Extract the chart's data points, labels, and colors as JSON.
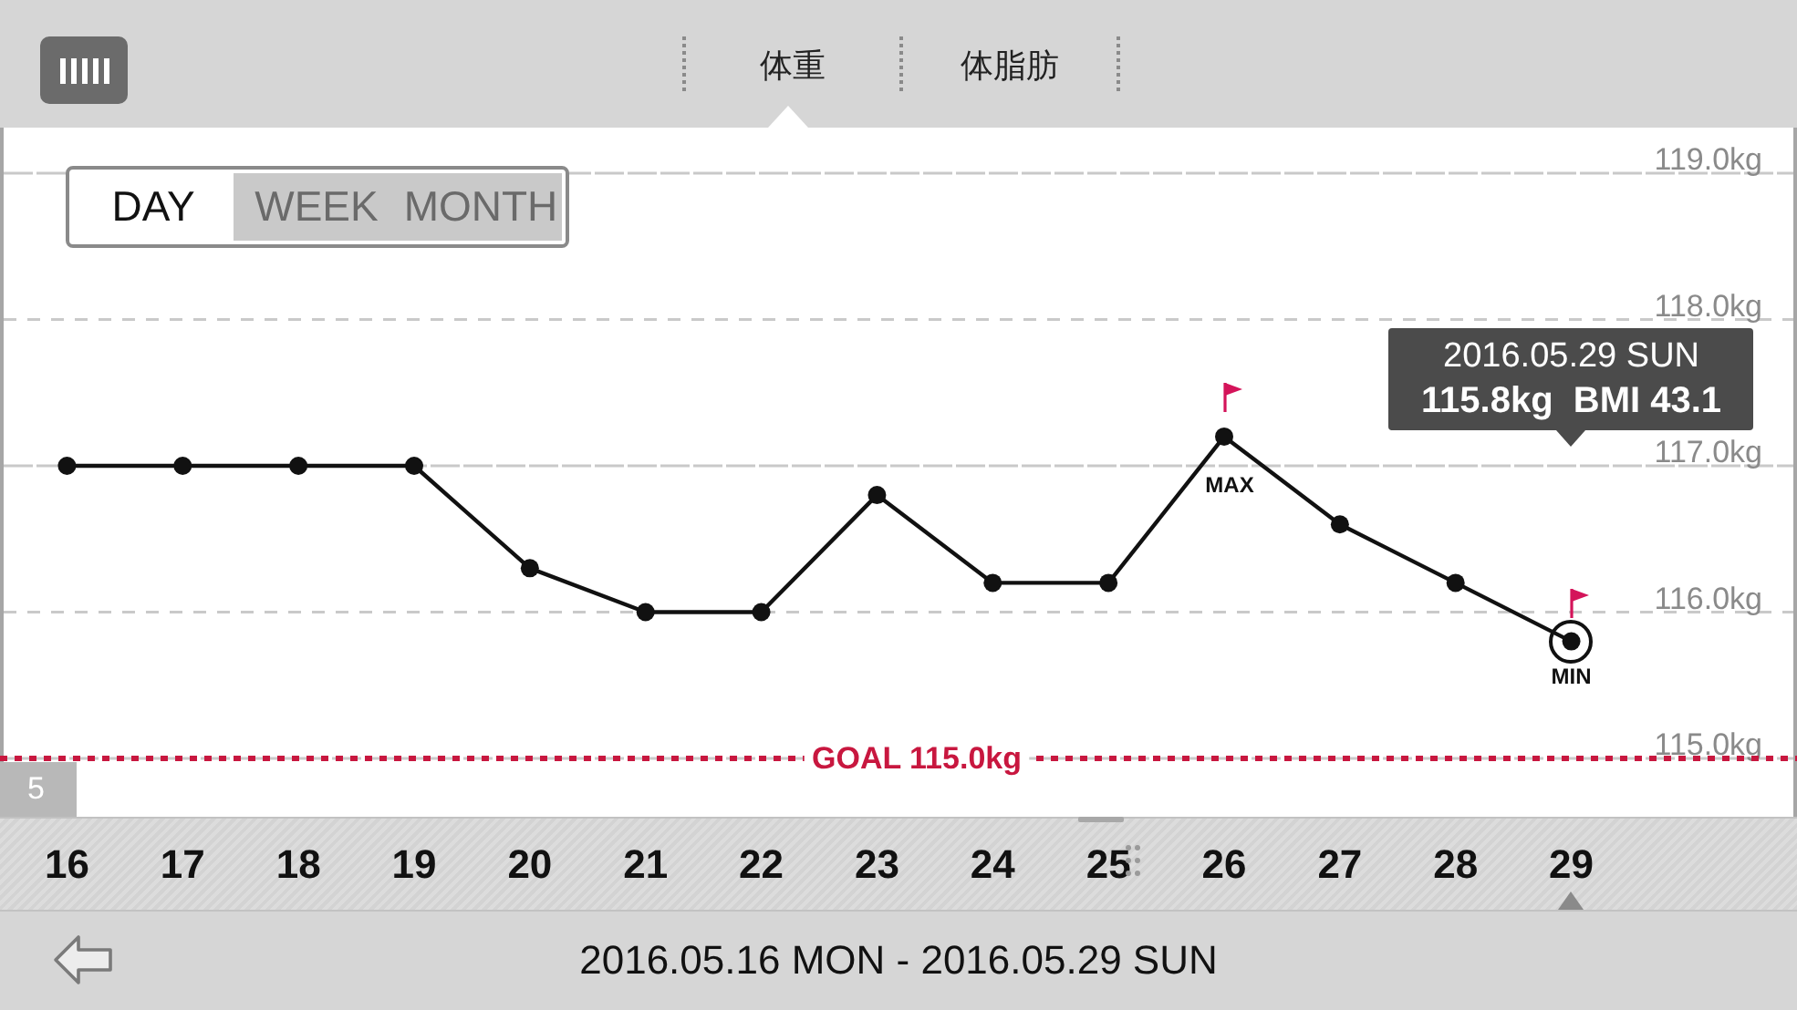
{
  "chart_data": {
    "type": "line",
    "title": "体重",
    "xlabel": "2016.05.16 MON - 2016.05.29 SUN",
    "categories": [
      "16",
      "17",
      "18",
      "19",
      "20",
      "21",
      "22",
      "23",
      "24",
      "25",
      "26",
      "27",
      "28",
      "29"
    ],
    "series": [
      {
        "color": "#111111",
        "values": [
          117.0,
          117.0,
          117.0,
          117.0,
          116.3,
          116.0,
          116.0,
          116.8,
          116.2,
          116.2,
          117.2,
          116.6,
          116.2,
          115.8
        ]
      }
    ],
    "ylim": [
      115,
      119
    ],
    "yticks": [
      {
        "value": 115,
        "label": "115.0kg"
      },
      {
        "value": 116,
        "label": "116.0kg"
      },
      {
        "value": 117,
        "label": "117.0kg"
      },
      {
        "value": 118,
        "label": "118.0kg"
      },
      {
        "value": 119,
        "label": "119.0kg"
      }
    ],
    "grid": "y",
    "marker": "circle",
    "line_style": "solid",
    "ref_lines": [
      {
        "axis": "y",
        "value": 115,
        "label": "GOAL 115.0kg",
        "color": "#c8173f",
        "line_style": "dotted"
      }
    ],
    "annotations": [
      "体脂肪",
      "DAY",
      "WEEK",
      "MONTH",
      "5",
      {
        "text": "MAX",
        "x": "26",
        "y": 117.2
      },
      {
        "text": "MIN",
        "x": "29",
        "y": 115.8
      },
      "2016.05.29 SUN",
      "115.8kg  BMI 43.1"
    ]
  }
}
